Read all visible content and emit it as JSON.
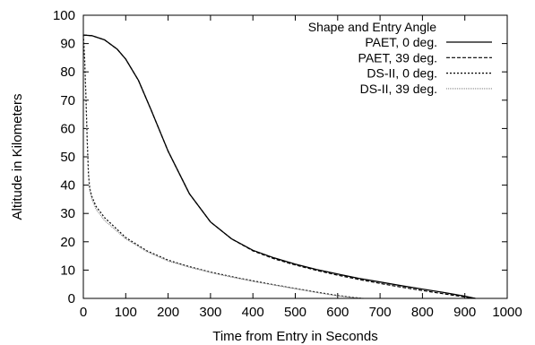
{
  "chart_data": {
    "type": "line",
    "title": "",
    "xlabel": "Time from Entry in Seconds",
    "ylabel": "Altitude in Kilometers",
    "xlim": [
      0,
      1000
    ],
    "ylim": [
      0,
      100
    ],
    "xticks": [
      0,
      100,
      200,
      300,
      400,
      500,
      600,
      700,
      800,
      900,
      1000
    ],
    "yticks": [
      0,
      10,
      20,
      30,
      40,
      50,
      60,
      70,
      80,
      90,
      100
    ],
    "grid": false,
    "legend": {
      "title": "Shape and Entry Angle",
      "position": "top-right"
    },
    "series": [
      {
        "name": "PAET, 0 deg.",
        "dash": "solid",
        "color": "#000000",
        "x": [
          0,
          20,
          50,
          80,
          100,
          130,
          160,
          200,
          250,
          300,
          350,
          400,
          450,
          500,
          550,
          600,
          650,
          700,
          750,
          800,
          850,
          900,
          925
        ],
        "y": [
          93,
          92.8,
          91.3,
          88,
          84.5,
          77,
          66.5,
          52,
          37,
          27,
          21,
          17,
          14.3,
          12.1,
          10.2,
          8.6,
          7.1,
          5.8,
          4.5,
          3.3,
          2.1,
          0.8,
          0
        ]
      },
      {
        "name": "PAET, 39 deg.",
        "dash": "dashed",
        "color": "#000000",
        "x": [
          0,
          20,
          50,
          80,
          100,
          130,
          160,
          200,
          250,
          300,
          350,
          400,
          450,
          500,
          550,
          600,
          650,
          700,
          750,
          800,
          850,
          900,
          925
        ],
        "y": [
          93,
          92.8,
          91.3,
          88,
          84.5,
          77,
          66.5,
          52,
          37,
          27,
          21,
          16.8,
          14,
          11.8,
          9.9,
          8.2,
          6.7,
          5.3,
          4,
          2.8,
          1.6,
          0.5,
          0
        ]
      },
      {
        "name": "DS-II, 0 deg.",
        "dash": "dotted",
        "color": "#000000",
        "x": [
          0,
          3,
          6,
          9,
          12,
          15,
          20,
          30,
          50,
          100,
          150,
          200,
          250,
          300,
          350,
          400,
          450,
          500,
          550,
          600,
          640,
          660
        ],
        "y": [
          93,
          85,
          72,
          56,
          44,
          39,
          36,
          32.5,
          28.5,
          21.5,
          16.8,
          13.5,
          11.2,
          9.3,
          7.7,
          6.2,
          4.8,
          3.5,
          2.2,
          1,
          0.3,
          0
        ]
      },
      {
        "name": "DS-II, 39 deg.",
        "dash": "dotted-fine",
        "color": "#888888",
        "x": [
          0,
          3,
          6,
          9,
          12,
          15,
          20,
          30,
          50,
          100,
          150,
          200,
          250,
          300,
          350,
          400,
          450,
          500,
          550,
          600,
          640,
          660
        ],
        "y": [
          93,
          85,
          72,
          56,
          44,
          38,
          35,
          31.5,
          27.5,
          21,
          16.5,
          13.2,
          11,
          9.1,
          7.5,
          6,
          4.7,
          3.4,
          2.1,
          0.9,
          0.2,
          0
        ]
      }
    ]
  }
}
